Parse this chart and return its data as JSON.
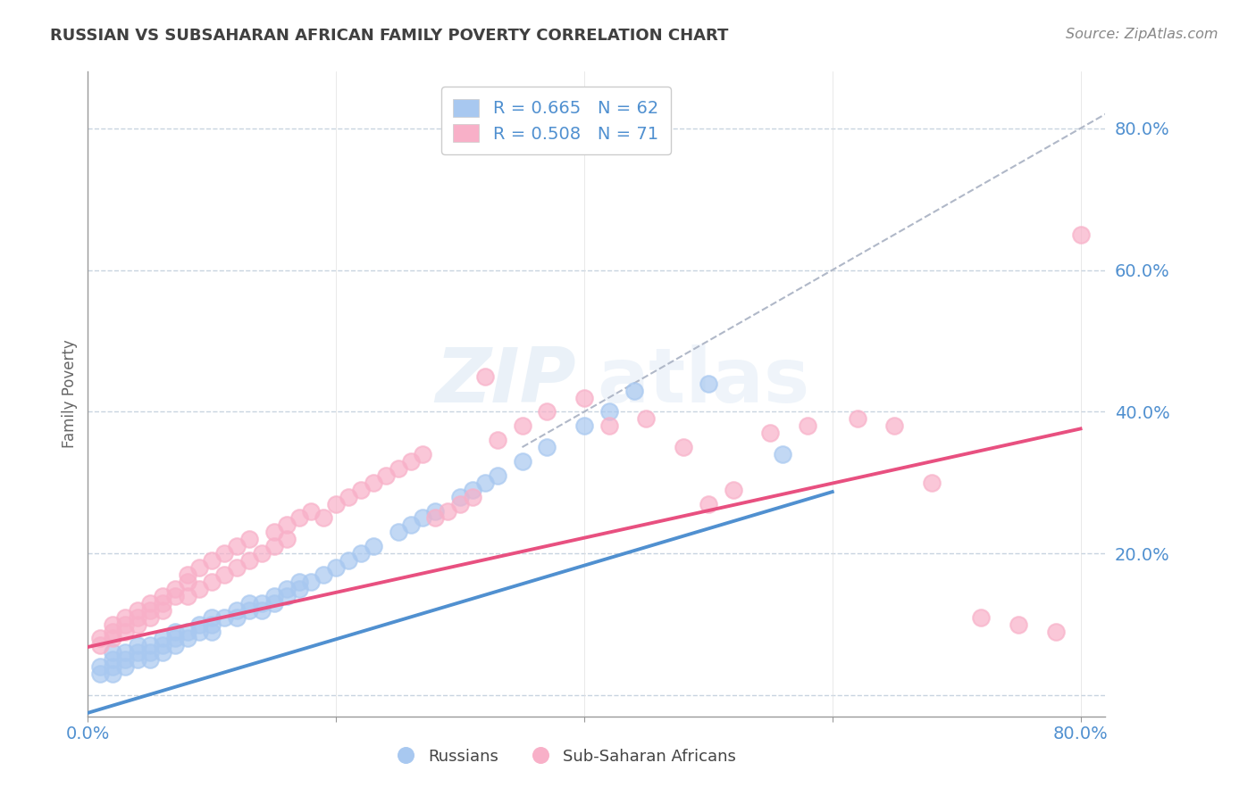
{
  "title": "RUSSIAN VS SUBSAHARAN AFRICAN FAMILY POVERTY CORRELATION CHART",
  "source": "Source: ZipAtlas.com",
  "ylabel": "Family Poverty",
  "xlim": [
    0.0,
    0.82
  ],
  "ylim": [
    -0.03,
    0.88
  ],
  "yticks": [
    0.0,
    0.2,
    0.4,
    0.6,
    0.8
  ],
  "ytick_labels": [
    "",
    "20.0%",
    "40.0%",
    "60.0%",
    "80.0%"
  ],
  "xtick_vals": [
    0.0,
    0.2,
    0.4,
    0.6,
    0.8
  ],
  "xtick_labels": [
    "0.0%",
    "",
    "",
    "",
    "80.0%"
  ],
  "legend_text1": "R = 0.665   N = 62",
  "legend_text2": "R = 0.508   N = 71",
  "color_russian": "#a8c8f0",
  "color_african": "#f8b0c8",
  "color_line_russian": "#5090d0",
  "color_line_african": "#e85080",
  "color_dashed": "#b0b8c8",
  "watermark": "ZIPatlas",
  "background_color": "#ffffff",
  "grid_color": "#c8d4e0",
  "title_color": "#404040",
  "axis_label_color": "#5090d0",
  "slope_russian": 0.52,
  "intercept_russian": -0.025,
  "slope_african": 0.385,
  "intercept_african": 0.068,
  "russian_x": [
    0.01,
    0.01,
    0.02,
    0.02,
    0.02,
    0.02,
    0.03,
    0.03,
    0.03,
    0.04,
    0.04,
    0.04,
    0.05,
    0.05,
    0.05,
    0.06,
    0.06,
    0.06,
    0.07,
    0.07,
    0.07,
    0.08,
    0.08,
    0.09,
    0.09,
    0.1,
    0.1,
    0.1,
    0.11,
    0.12,
    0.12,
    0.13,
    0.13,
    0.14,
    0.14,
    0.15,
    0.15,
    0.16,
    0.16,
    0.17,
    0.17,
    0.18,
    0.19,
    0.2,
    0.21,
    0.22,
    0.23,
    0.25,
    0.26,
    0.27,
    0.28,
    0.3,
    0.31,
    0.32,
    0.33,
    0.35,
    0.37,
    0.4,
    0.42,
    0.44,
    0.5,
    0.56
  ],
  "russian_y": [
    0.04,
    0.03,
    0.05,
    0.04,
    0.06,
    0.03,
    0.06,
    0.05,
    0.04,
    0.06,
    0.05,
    0.07,
    0.07,
    0.06,
    0.05,
    0.08,
    0.07,
    0.06,
    0.09,
    0.08,
    0.07,
    0.09,
    0.08,
    0.1,
    0.09,
    0.11,
    0.1,
    0.09,
    0.11,
    0.12,
    0.11,
    0.13,
    0.12,
    0.13,
    0.12,
    0.14,
    0.13,
    0.15,
    0.14,
    0.16,
    0.15,
    0.16,
    0.17,
    0.18,
    0.19,
    0.2,
    0.21,
    0.23,
    0.24,
    0.25,
    0.26,
    0.28,
    0.29,
    0.3,
    0.31,
    0.33,
    0.35,
    0.38,
    0.4,
    0.43,
    0.44,
    0.34
  ],
  "african_x": [
    0.01,
    0.01,
    0.02,
    0.02,
    0.02,
    0.03,
    0.03,
    0.03,
    0.04,
    0.04,
    0.04,
    0.05,
    0.05,
    0.05,
    0.06,
    0.06,
    0.06,
    0.07,
    0.07,
    0.08,
    0.08,
    0.08,
    0.09,
    0.09,
    0.1,
    0.1,
    0.11,
    0.11,
    0.12,
    0.12,
    0.13,
    0.13,
    0.14,
    0.15,
    0.15,
    0.16,
    0.16,
    0.17,
    0.18,
    0.19,
    0.2,
    0.21,
    0.22,
    0.23,
    0.24,
    0.25,
    0.26,
    0.27,
    0.28,
    0.29,
    0.3,
    0.31,
    0.32,
    0.33,
    0.35,
    0.37,
    0.4,
    0.42,
    0.45,
    0.48,
    0.5,
    0.52,
    0.55,
    0.58,
    0.62,
    0.65,
    0.68,
    0.72,
    0.75,
    0.78,
    0.8
  ],
  "african_y": [
    0.08,
    0.07,
    0.09,
    0.1,
    0.08,
    0.1,
    0.11,
    0.09,
    0.11,
    0.12,
    0.1,
    0.12,
    0.13,
    0.11,
    0.13,
    0.14,
    0.12,
    0.14,
    0.15,
    0.16,
    0.14,
    0.17,
    0.15,
    0.18,
    0.16,
    0.19,
    0.17,
    0.2,
    0.18,
    0.21,
    0.19,
    0.22,
    0.2,
    0.23,
    0.21,
    0.24,
    0.22,
    0.25,
    0.26,
    0.25,
    0.27,
    0.28,
    0.29,
    0.3,
    0.31,
    0.32,
    0.33,
    0.34,
    0.25,
    0.26,
    0.27,
    0.28,
    0.45,
    0.36,
    0.38,
    0.4,
    0.42,
    0.38,
    0.39,
    0.35,
    0.27,
    0.29,
    0.37,
    0.38,
    0.39,
    0.38,
    0.3,
    0.11,
    0.1,
    0.09,
    0.65
  ]
}
